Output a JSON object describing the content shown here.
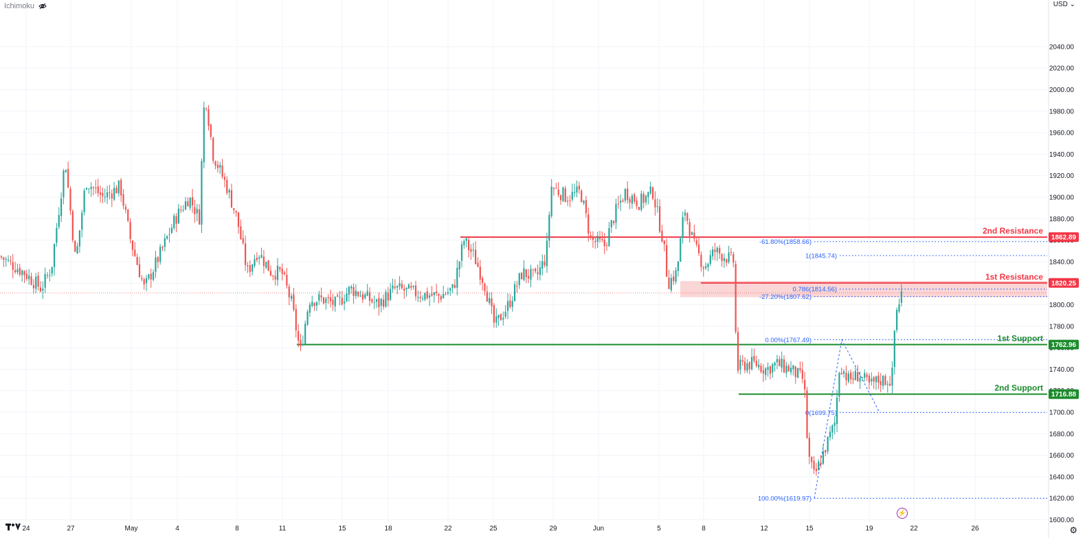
{
  "indicator": {
    "label": "Ichimoku",
    "hidden_icon": "eye-crossed-icon"
  },
  "currency": {
    "label": "USD",
    "dropdown_icon": "chevron-down-icon"
  },
  "colors": {
    "up": "#26a69a",
    "down": "#ef5350",
    "resistance": "#f23645",
    "support": "#1b8b2c",
    "fib": "#2962ff",
    "zone": "#f8c8c8",
    "grid": "#f0f3fa"
  },
  "chart_data": {
    "type": "candlestick",
    "y_range": [
      1590,
      2050
    ],
    "y_ticks": [
      1600,
      1620,
      1640,
      1660,
      1680,
      1700,
      1720,
      1740,
      1760,
      1780,
      1800,
      1820,
      1840,
      1860,
      1880,
      1900,
      1920,
      1940,
      1960,
      1980,
      2000,
      2020,
      2040
    ],
    "x_ticks": [
      {
        "label": "24",
        "pos": 38
      },
      {
        "label": "27",
        "pos": 103
      },
      {
        "label": "May",
        "pos": 191
      },
      {
        "label": "4",
        "pos": 258
      },
      {
        "label": "8",
        "pos": 345
      },
      {
        "label": "11",
        "pos": 411
      },
      {
        "label": "15",
        "pos": 498
      },
      {
        "label": "18",
        "pos": 565
      },
      {
        "label": "22",
        "pos": 652
      },
      {
        "label": "25",
        "pos": 718
      },
      {
        "label": "29",
        "pos": 805
      },
      {
        "label": "Jun",
        "pos": 871
      },
      {
        "label": "5",
        "pos": 959
      },
      {
        "label": "8",
        "pos": 1024
      },
      {
        "label": "12",
        "pos": 1112
      },
      {
        "label": "15",
        "pos": 1178
      },
      {
        "label": "19",
        "pos": 1265
      },
      {
        "label": "22",
        "pos": 1330
      },
      {
        "label": "26",
        "pos": 1419
      }
    ],
    "x_range_days": [
      "Apr 24",
      "Jun 26"
    ],
    "anchors": [
      [
        0,
        1845
      ],
      [
        35,
        1830
      ],
      [
        60,
        1815
      ],
      [
        75,
        1835
      ],
      [
        95,
        1935
      ],
      [
        110,
        1840
      ],
      [
        125,
        1915
      ],
      [
        150,
        1900
      ],
      [
        175,
        1910
      ],
      [
        190,
        1860
      ],
      [
        210,
        1815
      ],
      [
        235,
        1850
      ],
      [
        255,
        1880
      ],
      [
        275,
        1900
      ],
      [
        290,
        1880
      ],
      [
        298,
        2000
      ],
      [
        310,
        1940
      ],
      [
        330,
        1910
      ],
      [
        345,
        1880
      ],
      [
        360,
        1830
      ],
      [
        375,
        1850
      ],
      [
        395,
        1830
      ],
      [
        410,
        1830
      ],
      [
        425,
        1800
      ],
      [
        437,
        1755
      ],
      [
        450,
        1805
      ],
      [
        470,
        1805
      ],
      [
        490,
        1800
      ],
      [
        510,
        1815
      ],
      [
        530,
        1808
      ],
      [
        550,
        1800
      ],
      [
        575,
        1815
      ],
      [
        610,
        1810
      ],
      [
        640,
        1808
      ],
      [
        660,
        1815
      ],
      [
        675,
        1860
      ],
      [
        690,
        1845
      ],
      [
        705,
        1820
      ],
      [
        720,
        1780
      ],
      [
        740,
        1800
      ],
      [
        760,
        1830
      ],
      [
        780,
        1825
      ],
      [
        795,
        1845
      ],
      [
        802,
        1910
      ],
      [
        825,
        1900
      ],
      [
        845,
        1905
      ],
      [
        860,
        1860
      ],
      [
        880,
        1855
      ],
      [
        895,
        1885
      ],
      [
        910,
        1905
      ],
      [
        930,
        1895
      ],
      [
        950,
        1905
      ],
      [
        965,
        1860
      ],
      [
        972,
        1820
      ],
      [
        985,
        1830
      ],
      [
        996,
        1890
      ],
      [
        1010,
        1855
      ],
      [
        1025,
        1835
      ],
      [
        1040,
        1850
      ],
      [
        1055,
        1845
      ],
      [
        1068,
        1840
      ],
      [
        1072,
        1740
      ],
      [
        1085,
        1745
      ],
      [
        1100,
        1745
      ],
      [
        1115,
        1740
      ],
      [
        1130,
        1745
      ],
      [
        1150,
        1740
      ],
      [
        1170,
        1730
      ],
      [
        1176,
        1660
      ],
      [
        1185,
        1640
      ],
      [
        1200,
        1665
      ],
      [
        1215,
        1690
      ],
      [
        1222,
        1745
      ],
      [
        1235,
        1730
      ],
      [
        1250,
        1735
      ],
      [
        1265,
        1725
      ],
      [
        1280,
        1730
      ],
      [
        1298,
        1730
      ],
      [
        1303,
        1790
      ],
      [
        1312,
        1811
      ]
    ],
    "annotations": [
      {
        "text": "1st Support",
        "price": 1762.96
      },
      {
        "text": "2nd Support",
        "price": 1716.88
      },
      {
        "text": "1st Resistance",
        "price": 1820.25
      },
      {
        "text": "2nd Resistance",
        "price": 1862.89
      }
    ],
    "levels": [
      {
        "name": "2nd Resistance",
        "price": 1862.89,
        "badge": "1862.89",
        "role": "resistance",
        "x_start": 670
      },
      {
        "name": "1st Resistance",
        "price": 1820.25,
        "badge": "1820.25",
        "role": "resistance",
        "x_start": 1020
      },
      {
        "name": "1st Support",
        "price": 1762.96,
        "badge": "1762.96",
        "role": "support",
        "x_start": 432
      },
      {
        "name": "2nd Support",
        "price": 1716.88,
        "badge": "1716.88",
        "role": "support",
        "x_start": 1075
      }
    ],
    "resistance_zone": {
      "low": 1807,
      "high": 1822
    },
    "fib_levels": [
      {
        "text": "-61.80%(1858.66)",
        "price": 1858.66,
        "x1": 1185
      },
      {
        "text": "1(1845.74)",
        "price": 1845.74,
        "x1": 1222
      },
      {
        "text": "0.786(1814.56)",
        "price": 1814.56,
        "x1": 1222
      },
      {
        "text": "-27.20%(1807.62)",
        "price": 1807.62,
        "x1": 1185
      },
      {
        "text": "0.00%(1767.49)",
        "price": 1767.49,
        "x1": 1185
      },
      {
        "text": "0(1699.75)",
        "price": 1699.75,
        "x1": 1222
      },
      {
        "text": "100.00%(1619.97)",
        "price": 1619.97,
        "x1": 1185
      }
    ],
    "fib_path": [
      [
        1185,
        1619.97
      ],
      [
        1225,
        1767.49
      ],
      [
        1280,
        1699.75
      ]
    ],
    "current_price": 1811
  }
}
